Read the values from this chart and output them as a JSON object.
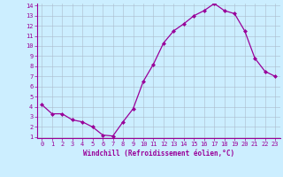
{
  "x": [
    0,
    1,
    2,
    3,
    4,
    5,
    6,
    7,
    8,
    9,
    10,
    11,
    12,
    13,
    14,
    15,
    16,
    17,
    18,
    19,
    20,
    21,
    22,
    23
  ],
  "y": [
    4.2,
    3.3,
    3.3,
    2.7,
    2.5,
    2.0,
    1.2,
    1.1,
    2.5,
    3.8,
    6.5,
    8.2,
    10.3,
    11.5,
    12.2,
    13.0,
    13.5,
    14.2,
    13.5,
    13.2,
    11.5,
    8.8,
    7.5,
    7.0
  ],
  "line_color": "#990099",
  "marker": "D",
  "marker_size": 2.0,
  "background_color": "#cceeff",
  "grid_color": "#aabbcc",
  "xlabel": "Windchill (Refroidissement éolien,°C)",
  "xlabel_color": "#990099",
  "ylim": [
    1,
    14
  ],
  "xlim": [
    -0.5,
    23.5
  ],
  "yticks": [
    1,
    2,
    3,
    4,
    5,
    6,
    7,
    8,
    9,
    10,
    11,
    12,
    13,
    14
  ],
  "xticks": [
    0,
    1,
    2,
    3,
    4,
    5,
    6,
    7,
    8,
    9,
    10,
    11,
    12,
    13,
    14,
    15,
    16,
    17,
    18,
    19,
    20,
    21,
    22,
    23
  ],
  "tick_label_size": 5,
  "xlabel_size": 5.5,
  "spine_color": "#990099",
  "tick_color": "#990099"
}
